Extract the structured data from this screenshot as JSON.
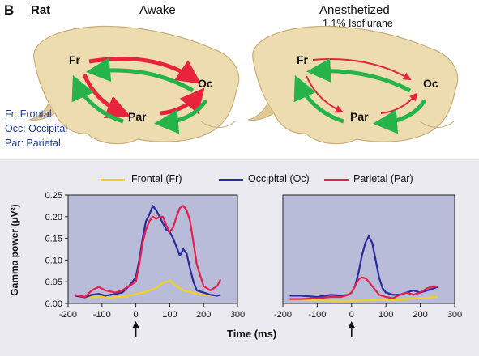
{
  "header": {
    "panel_letter": "B",
    "species": "Rat",
    "condition_left": "Awake",
    "condition_right": "Anesthetized",
    "condition_right_sub": "1.1% Isoflurane"
  },
  "brain": {
    "region_labels": {
      "frontal": "Fr",
      "occipital": "Oc",
      "parietal": "Par"
    },
    "key": [
      {
        "abbr": "Fr",
        "text": "Fr: Frontal"
      },
      {
        "abbr": "Occ",
        "text": "Occ: Occipital"
      },
      {
        "abbr": "Par",
        "text": "Par: Parietal"
      }
    ],
    "colors": {
      "brain": "#eddcb0",
      "brain_edge": "#c9ad7a",
      "feedforward": "#e8243d",
      "feedback": "#25b34a"
    }
  },
  "chart_legend": [
    {
      "label": "Frontal (Fr)",
      "color": "#f2d31b"
    },
    {
      "label": "Occipital (Oc)",
      "color": "#2a2a9e"
    },
    {
      "label": "Parietal (Par)",
      "color": "#e5204a"
    }
  ],
  "chart_data": [
    {
      "type": "line",
      "condition": "Awake",
      "xlabel": "Time (ms)",
      "ylabel": "Gamma power (μV²)",
      "xlim": [
        -200,
        300
      ],
      "ylim": [
        0,
        0.25
      ],
      "xticks": [
        "-200",
        "-100",
        "0",
        "100",
        "200",
        "300"
      ],
      "yticks": [
        "0.00",
        "0.05",
        "0.10",
        "0.15",
        "0.20",
        "0.25"
      ],
      "stimulus_marker_x": 0,
      "series": [
        {
          "name": "Frontal (Fr)",
          "color": "#f2d31b",
          "x": [
            -180,
            -150,
            -120,
            -100,
            -80,
            -50,
            -20,
            0,
            20,
            40,
            60,
            80,
            100,
            120,
            140,
            160,
            180,
            200,
            220,
            250
          ],
          "y": [
            0.018,
            0.015,
            0.014,
            0.016,
            0.013,
            0.015,
            0.018,
            0.022,
            0.025,
            0.03,
            0.035,
            0.048,
            0.053,
            0.04,
            0.03,
            0.027,
            0.022,
            0.02,
            0.018,
            0.02
          ]
        },
        {
          "name": "Occipital (Oc)",
          "color": "#2a2a9e",
          "x": [
            -180,
            -150,
            -130,
            -110,
            -90,
            -60,
            -40,
            -20,
            0,
            10,
            20,
            30,
            40,
            50,
            60,
            70,
            80,
            90,
            100,
            110,
            120,
            130,
            140,
            150,
            160,
            170,
            180,
            200,
            220,
            240,
            250
          ],
          "y": [
            0.018,
            0.014,
            0.02,
            0.022,
            0.018,
            0.022,
            0.025,
            0.04,
            0.06,
            0.1,
            0.15,
            0.19,
            0.205,
            0.225,
            0.215,
            0.2,
            0.185,
            0.17,
            0.165,
            0.15,
            0.13,
            0.11,
            0.125,
            0.115,
            0.08,
            0.05,
            0.03,
            0.025,
            0.02,
            0.018,
            0.02
          ]
        },
        {
          "name": "Parietal (Par)",
          "color": "#e5204a",
          "x": [
            -180,
            -150,
            -130,
            -110,
            -90,
            -60,
            -40,
            -20,
            0,
            10,
            20,
            30,
            40,
            50,
            60,
            70,
            80,
            90,
            100,
            110,
            120,
            130,
            140,
            150,
            160,
            170,
            180,
            200,
            220,
            240,
            250
          ],
          "y": [
            0.02,
            0.015,
            0.03,
            0.038,
            0.03,
            0.025,
            0.03,
            0.04,
            0.05,
            0.09,
            0.14,
            0.17,
            0.19,
            0.2,
            0.195,
            0.2,
            0.2,
            0.18,
            0.165,
            0.175,
            0.2,
            0.22,
            0.225,
            0.215,
            0.19,
            0.14,
            0.09,
            0.04,
            0.03,
            0.04,
            0.055
          ]
        }
      ]
    },
    {
      "type": "line",
      "condition": "Anesthetized",
      "xlabel": "Time (ms)",
      "ylabel": "",
      "xlim": [
        -200,
        300
      ],
      "ylim": [
        0,
        0.25
      ],
      "xticks": [
        "-200",
        "-100",
        "0",
        "100",
        "200",
        "300"
      ],
      "yticks": [],
      "stimulus_marker_x": 0,
      "series": [
        {
          "name": "Frontal (Fr)",
          "color": "#f2d31b",
          "x": [
            -180,
            -150,
            -100,
            -50,
            0,
            50,
            100,
            150,
            200,
            250
          ],
          "y": [
            0.01,
            0.008,
            0.007,
            0.006,
            0.006,
            0.007,
            0.008,
            0.01,
            0.012,
            0.015
          ]
        },
        {
          "name": "Occipital (Oc)",
          "color": "#2a2a9e",
          "x": [
            -180,
            -150,
            -100,
            -60,
            -30,
            -10,
            0,
            10,
            20,
            30,
            40,
            50,
            60,
            70,
            80,
            90,
            100,
            120,
            140,
            160,
            180,
            200,
            220,
            240,
            250
          ],
          "y": [
            0.018,
            0.018,
            0.015,
            0.02,
            0.018,
            0.02,
            0.025,
            0.04,
            0.07,
            0.11,
            0.14,
            0.155,
            0.14,
            0.1,
            0.06,
            0.035,
            0.025,
            0.02,
            0.02,
            0.025,
            0.03,
            0.025,
            0.03,
            0.035,
            0.038
          ]
        },
        {
          "name": "Parietal (Par)",
          "color": "#e5204a",
          "x": [
            -180,
            -150,
            -100,
            -60,
            -30,
            -10,
            0,
            10,
            20,
            30,
            40,
            50,
            60,
            70,
            80,
            100,
            120,
            140,
            160,
            180,
            200,
            220,
            240,
            250
          ],
          "y": [
            0.01,
            0.01,
            0.012,
            0.015,
            0.015,
            0.02,
            0.025,
            0.04,
            0.055,
            0.06,
            0.058,
            0.05,
            0.04,
            0.03,
            0.02,
            0.015,
            0.012,
            0.02,
            0.025,
            0.02,
            0.025,
            0.035,
            0.04,
            0.038
          ]
        }
      ]
    }
  ]
}
